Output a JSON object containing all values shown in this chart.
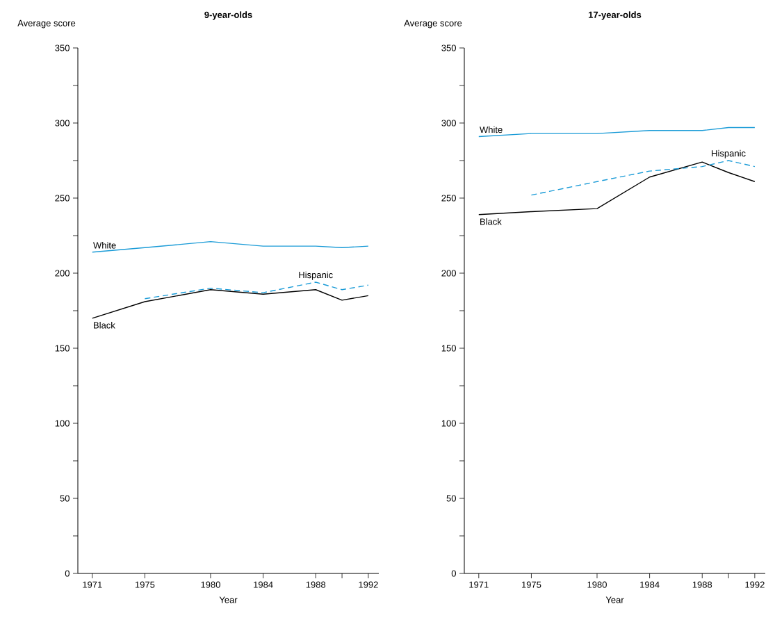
{
  "chart_data": [
    {
      "type": "line",
      "title": "9-year-olds",
      "xlabel": "Year",
      "ylabel": "Average score",
      "x": [
        1971,
        1975,
        1980,
        1984,
        1988,
        1990,
        1992
      ],
      "xlim": [
        1969.9,
        1992.8
      ],
      "xticks": [
        1971,
        1975,
        1980,
        1984,
        1988,
        {
          "value": 1990,
          "label": null
        },
        1992
      ],
      "ylim": [
        0,
        350
      ],
      "yticks": [
        0,
        {
          "value": 25,
          "label": null
        },
        50,
        {
          "value": 75,
          "label": null
        },
        100,
        {
          "value": 125,
          "label": null
        },
        150,
        {
          "value": 175,
          "label": null
        },
        200,
        {
          "value": 225,
          "label": null
        },
        250,
        {
          "value": 275,
          "label": null
        },
        300,
        {
          "value": 325,
          "label": null
        },
        350
      ],
      "series": [
        {
          "name": "White",
          "color": "#1a9bd7",
          "line_style": "solid",
          "values": [
            214,
            217,
            221,
            218,
            218,
            217,
            218
          ]
        },
        {
          "name": "Black",
          "color": "#000000",
          "line_style": "solid",
          "values": [
            170,
            181,
            189,
            186,
            189,
            182,
            185
          ]
        },
        {
          "name": "Hispanic",
          "color": "#1a9bd7",
          "line_style": "dashed",
          "x": [
            1975,
            1980,
            1984,
            1988,
            1990,
            1992
          ],
          "values": [
            183,
            190,
            187,
            194,
            189,
            192
          ]
        }
      ]
    },
    {
      "type": "line",
      "title": "17-year-olds",
      "xlabel": "Year",
      "ylabel": "Average score",
      "x": [
        1971,
        1975,
        1980,
        1984,
        1988,
        1990,
        1992
      ],
      "xlim": [
        1969.9,
        1992.8
      ],
      "xticks": [
        1971,
        1975,
        1980,
        1984,
        1988,
        {
          "value": 1990,
          "label": null
        },
        1992
      ],
      "ylim": [
        0,
        350
      ],
      "yticks": [
        0,
        {
          "value": 25,
          "label": null
        },
        50,
        {
          "value": 75,
          "label": null
        },
        100,
        {
          "value": 125,
          "label": null
        },
        150,
        {
          "value": 175,
          "label": null
        },
        200,
        {
          "value": 225,
          "label": null
        },
        250,
        {
          "value": 275,
          "label": null
        },
        300,
        {
          "value": 325,
          "label": null
        },
        350
      ],
      "series": [
        {
          "name": "White",
          "color": "#1a9bd7",
          "line_style": "solid",
          "values": [
            291,
            293,
            293,
            295,
            295,
            297,
            297
          ]
        },
        {
          "name": "Black",
          "color": "#000000",
          "line_style": "solid",
          "values": [
            239,
            241,
            243,
            264,
            274,
            267,
            261
          ]
        },
        {
          "name": "Hispanic",
          "color": "#1a9bd7",
          "line_style": "dashed",
          "x": [
            1975,
            1980,
            1984,
            1988,
            1990,
            1992
          ],
          "values": [
            252,
            261,
            268,
            271,
            275,
            271
          ]
        }
      ]
    }
  ]
}
